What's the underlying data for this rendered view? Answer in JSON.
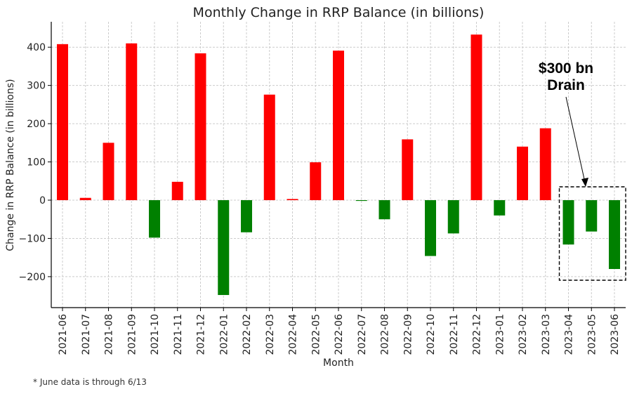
{
  "chart_data": {
    "type": "bar",
    "title": "Monthly Change in RRP Balance (in billions)",
    "xlabel": "Month",
    "ylabel": "Change in RRP Balance (in billions)",
    "ylim": [
      -280,
      470
    ],
    "yticks": [
      -200,
      -100,
      0,
      100,
      200,
      300,
      400
    ],
    "ytick_labels": [
      "−200",
      "−100",
      "0",
      "100",
      "200",
      "300",
      "400"
    ],
    "grid": true,
    "categories": [
      "2021-06",
      "2021-07",
      "2021-08",
      "2021-09",
      "2021-10",
      "2021-11",
      "2021-12",
      "2022-01",
      "2022-02",
      "2022-03",
      "2022-04",
      "2022-05",
      "2022-06",
      "2022-07",
      "2022-08",
      "2022-09",
      "2022-10",
      "2022-11",
      "2022-12",
      "2023-01",
      "2023-02",
      "2023-03",
      "2023-04",
      "2023-05",
      "2023-06"
    ],
    "values": [
      408,
      6,
      150,
      410,
      -98,
      48,
      384,
      -248,
      -84,
      276,
      3,
      99,
      391,
      -2,
      -50,
      159,
      -146,
      -87,
      433,
      -40,
      140,
      188,
      -116,
      -82,
      -180
    ],
    "colors": {
      "positive": "#ff0000",
      "negative": "#008000"
    },
    "annotation": {
      "line1": "$300 bn",
      "line2": "Drain",
      "highlight_categories": [
        "2023-04",
        "2023-05",
        "2023-06"
      ]
    }
  },
  "footnote": "* June data is through 6/13"
}
